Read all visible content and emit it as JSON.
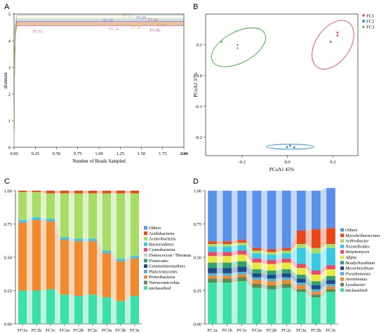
{
  "panel_letters": {
    "a": "A",
    "b": "B",
    "c": "C",
    "d": "D"
  },
  "chart_data": [
    {
      "panel": "A",
      "type": "line",
      "title": "",
      "xlabel": "Number of Reads Sampled",
      "ylabel": "shannon",
      "x_multiplier_label": "1e6",
      "xlim": [
        0,
        2.0
      ],
      "ylim": [
        0,
        5
      ],
      "x_ticks": [
        "0.00",
        "0.25",
        "0.50",
        "0.75",
        "1.00",
        "1.25",
        "1.50",
        "1.75",
        "2.00"
      ],
      "y_ticks": [
        "0",
        "1",
        "2",
        "3",
        "4",
        "5"
      ],
      "series": [
        {
          "name": "FC1c",
          "plateau": 4.6,
          "color": "#e0507a",
          "x_end": 2.0,
          "label_at": [
            0.22,
            4.3
          ]
        },
        {
          "name": "FC1b",
          "plateau": 4.72,
          "color": "#6666cc",
          "x_end": 2.0,
          "label_at": [
            1.05,
            4.7
          ]
        },
        {
          "name": "FC1a",
          "plateau": 4.66,
          "color": "#f08aa0",
          "x_end": 2.0,
          "label_at": [
            1.12,
            4.4
          ]
        },
        {
          "name": "FC2a",
          "plateau": 4.84,
          "color": "#a8c050",
          "x_end": 2.0,
          "label_at": [
            1.28,
            4.88
          ]
        },
        {
          "name": "FC2b",
          "plateau": 4.78,
          "color": "#5a7adc",
          "x_end": 2.0,
          "label_at": [
            1.44,
            4.82
          ]
        },
        {
          "name": "FC2c",
          "plateau": 4.7,
          "color": "#c07840",
          "x_end": 2.0,
          "label_at": [
            1.58,
            4.74
          ]
        },
        {
          "name": "FC3a",
          "plateau": 4.64,
          "color": "#e8a848",
          "x_end": 2.0,
          "label_at": [
            1.68,
            4.56
          ]
        },
        {
          "name": "FC3b",
          "plateau": 4.56,
          "color": "#c050c8",
          "x_end": 2.0,
          "label_at": [
            1.6,
            4.34
          ]
        },
        {
          "name": "FC3c",
          "plateau": 4.6,
          "color": "#d0b020",
          "x_end": 2.0,
          "label_at": [
            1.38,
            4.46
          ]
        },
        {
          "name": "",
          "plateau": 4.96,
          "color": "#88b088",
          "x_end": 2.0,
          "label_at": null
        }
      ]
    },
    {
      "panel": "B",
      "type": "scatter",
      "title": "",
      "xlabel": "PCoA1  45%",
      "ylabel": "PCoA2  37%",
      "xlim": [
        -0.36,
        0.31
      ],
      "ylim": [
        -0.26,
        0.2
      ],
      "x_ticks": [
        -0.2,
        0.0,
        0.2
      ],
      "y_ticks": [
        -0.2,
        -0.1,
        0.0,
        0.1
      ],
      "legend_position": "top-right",
      "series": [
        {
          "name": "FC1",
          "color": "#e05050",
          "marker": "circle",
          "points": [
            [
              0.22,
              0.13
            ],
            [
              0.22,
              0.14
            ],
            [
              0.19,
              0.11
            ]
          ],
          "ellipse": {
            "cx": 0.2,
            "cy": 0.1,
            "rx": 0.12,
            "ry": 0.055,
            "angle": -55
          }
        },
        {
          "name": "FC2",
          "color": "#2a90d0",
          "marker": "square",
          "points": [
            [
              -0.002,
              -0.232
            ],
            [
              0.012,
              -0.228
            ],
            [
              0.03,
              -0.233
            ]
          ],
          "ellipse": {
            "cx": 0.012,
            "cy": -0.231,
            "rx": 0.105,
            "ry": 0.008,
            "angle": 0
          }
        },
        {
          "name": "FC3",
          "color": "#3aaa3a",
          "marker": "triangle",
          "points": [
            [
              -0.29,
              0.11
            ],
            [
              -0.22,
              0.1
            ],
            [
              -0.22,
              0.09
            ]
          ],
          "ellipse": {
            "cx": -0.215,
            "cy": 0.092,
            "rx": 0.13,
            "ry": 0.05,
            "angle": -28
          }
        }
      ]
    },
    {
      "panel": "C",
      "type": "bar",
      "stacked": true,
      "title": "",
      "xlabel": "",
      "ylabel": "",
      "ylim": [
        0,
        1
      ],
      "y_ticks": [
        "0.00",
        "0.25",
        "0.50",
        "0.75",
        "1.00"
      ],
      "categories": [
        "FC1a",
        "FC1b",
        "FC1c",
        "FC2a",
        "FC2b",
        "FC2c",
        "FC3a",
        "FC3b",
        "FC3c"
      ],
      "legend_position": "right",
      "series": [
        {
          "name": "unclassified",
          "color": "#3ddfa8",
          "values": [
            0.25,
            0.25,
            0.26,
            0.22,
            0.21,
            0.22,
            0.2,
            0.17,
            0.21
          ]
        },
        {
          "name": "Verrucomicrobia",
          "color": "#5a8a55",
          "values": [
            0.0,
            0.0,
            0.0,
            0.0,
            0.0,
            0.0,
            0.0,
            0.0,
            0.0
          ]
        },
        {
          "name": "Proteobacteria",
          "color": "#f08a30",
          "values": [
            0.51,
            0.53,
            0.51,
            0.41,
            0.41,
            0.4,
            0.33,
            0.3,
            0.28
          ]
        },
        {
          "name": "Planctomycetes",
          "color": "#5ab0d0",
          "values": [
            0.01,
            0.01,
            0.01,
            0.01,
            0.01,
            0.01,
            0.01,
            0.01,
            0.01
          ]
        },
        {
          "name": "Gemmatimonadetes",
          "color": "#1a4a8a",
          "values": [
            0.0,
            0.0,
            0.0,
            0.0,
            0.0,
            0.0,
            0.0,
            0.0,
            0.0
          ]
        },
        {
          "name": "Firmicutes",
          "color": "#30a070",
          "values": [
            0.0,
            0.0,
            0.0,
            0.0,
            0.0,
            0.0,
            0.0,
            0.0,
            0.0
          ]
        },
        {
          "name": "Deinococcus−Thermus",
          "color": "#cccccc",
          "values": [
            0.0,
            0.0,
            0.0,
            0.0,
            0.0,
            0.0,
            0.0,
            0.0,
            0.0
          ]
        },
        {
          "name": "Cyanobacteria",
          "color": "#e8486a",
          "values": [
            0.0,
            0.0,
            0.0,
            0.0,
            0.0,
            0.0,
            0.0,
            0.0,
            0.0
          ]
        },
        {
          "name": "Bacteroidetes",
          "color": "#38c8e0",
          "values": [
            0.01,
            0.01,
            0.01,
            0.01,
            0.01,
            0.01,
            0.01,
            0.01,
            0.01
          ]
        },
        {
          "name": "Actinobacteria",
          "color": "#a8dc68",
          "values": [
            0.21,
            0.19,
            0.19,
            0.33,
            0.34,
            0.34,
            0.43,
            0.49,
            0.47
          ]
        },
        {
          "name": "Acidobacteria",
          "color": "#e84818",
          "values": [
            0.01,
            0.01,
            0.02,
            0.02,
            0.02,
            0.02,
            0.02,
            0.02,
            0.02
          ]
        },
        {
          "name": "Others",
          "color": "#5a90e8",
          "values": [
            0.0,
            0.0,
            0.0,
            0.0,
            0.0,
            0.0,
            0.0,
            0.0,
            0.0
          ]
        }
      ]
    },
    {
      "panel": "D",
      "type": "bar",
      "stacked": true,
      "title": "",
      "xlabel": "",
      "ylabel": "",
      "ylim": [
        0,
        1
      ],
      "y_ticks": [
        "0.00",
        "0.25",
        "0.50",
        "0.75",
        "1.00"
      ],
      "categories": [
        "FC1a",
        "FC1b",
        "FC1c",
        "FC2a",
        "FC2b",
        "FC2c",
        "FC3a",
        "FC3b",
        "FC3c"
      ],
      "legend_position": "right",
      "series": [
        {
          "name": "unclassified",
          "color": "#3ddfa8",
          "italic": false,
          "values": [
            0.31,
            0.31,
            0.32,
            0.27,
            0.26,
            0.27,
            0.24,
            0.2,
            0.24
          ]
        },
        {
          "name": "Lysobacter",
          "color": "#5a8a55",
          "italic": true,
          "values": [
            0.03,
            0.03,
            0.03,
            0.03,
            0.03,
            0.03,
            0.02,
            0.02,
            0.02
          ]
        },
        {
          "name": "Arenimonas",
          "color": "#f08a30",
          "italic": true,
          "values": [
            0.02,
            0.02,
            0.02,
            0.03,
            0.03,
            0.03,
            0.03,
            0.02,
            0.02
          ]
        },
        {
          "name": "Pseudomonas",
          "color": "#5ab0d0",
          "italic": true,
          "values": [
            0.02,
            0.02,
            0.02,
            0.02,
            0.02,
            0.02,
            0.02,
            0.02,
            0.02
          ]
        },
        {
          "name": "Mesorhizobium",
          "color": "#1a4a8a",
          "italic": true,
          "values": [
            0.04,
            0.04,
            0.04,
            0.03,
            0.03,
            0.03,
            0.03,
            0.03,
            0.03
          ]
        },
        {
          "name": "Bradyrhizobium",
          "color": "#30a070",
          "italic": true,
          "values": [
            0.04,
            0.04,
            0.04,
            0.03,
            0.03,
            0.03,
            0.03,
            0.03,
            0.03
          ]
        },
        {
          "name": "Afipia",
          "color": "#e8e840",
          "italic": true,
          "values": [
            0.05,
            0.05,
            0.05,
            0.05,
            0.05,
            0.05,
            0.05,
            0.05,
            0.05
          ]
        },
        {
          "name": "Streptomyces",
          "color": "#e8486a",
          "italic": true,
          "values": [
            0.03,
            0.03,
            0.03,
            0.03,
            0.03,
            0.03,
            0.03,
            0.03,
            0.03
          ]
        },
        {
          "name": "Nocardioides",
          "color": "#38c8e0",
          "italic": true,
          "values": [
            0.04,
            0.04,
            0.04,
            0.04,
            0.04,
            0.04,
            0.12,
            0.13,
            0.13
          ]
        },
        {
          "name": "Arthrobacter",
          "color": "#a8dc68",
          "italic": true,
          "values": [
            0.02,
            0.02,
            0.02,
            0.02,
            0.02,
            0.02,
            0.03,
            0.04,
            0.03
          ]
        },
        {
          "name": "Mycolicibacterium",
          "color": "#e84818",
          "italic": true,
          "values": [
            0.02,
            0.02,
            0.02,
            0.02,
            0.02,
            0.02,
            0.1,
            0.14,
            0.12
          ]
        },
        {
          "name": "Others",
          "color": "#5a90e8",
          "italic": false,
          "values": [
            0.38,
            0.38,
            0.37,
            0.43,
            0.44,
            0.43,
            0.3,
            0.29,
            0.3
          ]
        }
      ]
    }
  ]
}
